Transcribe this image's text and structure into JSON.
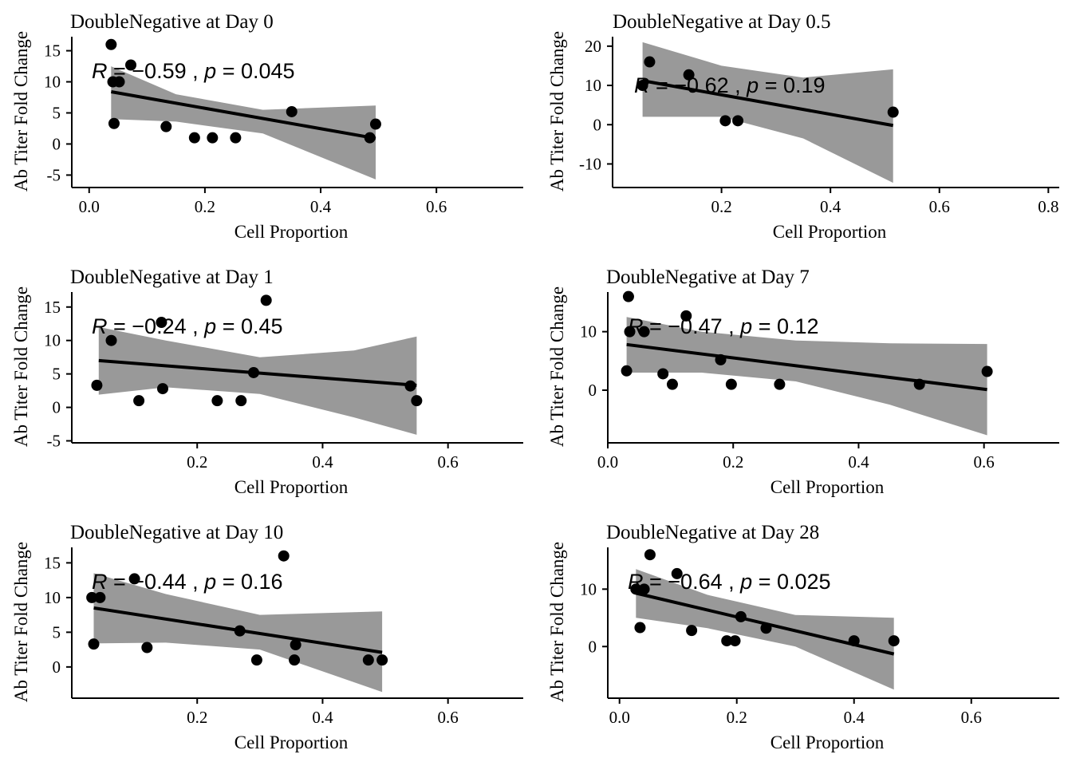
{
  "chart_data": [
    {
      "type": "scatter",
      "title": "DoubleNegative at Day 0",
      "xlabel": "Cell Proportion",
      "ylabel": "Ab Titer Fold Change",
      "xlim": [
        -0.03,
        0.75
      ],
      "ylim": [
        -7,
        17
      ],
      "xticks": [
        0.0,
        0.2,
        0.4,
        0.6
      ],
      "xtick_labels": [
        "0.0",
        "0.2",
        "0.4",
        "0.6"
      ],
      "yticks": [
        -5,
        0,
        5,
        10,
        15
      ],
      "ytick_labels": [
        "-5",
        "0",
        "5",
        "10",
        "15"
      ],
      "annotation": {
        "r_symbol": "R",
        "r_value": "= −0.59",
        "sep": ",",
        "p_symbol": "p",
        "p_value": "= 0.045"
      },
      "points": [
        [
          0.038,
          16
        ],
        [
          0.041,
          10
        ],
        [
          0.052,
          10
        ],
        [
          0.072,
          12.7
        ],
        [
          0.043,
          3.3
        ],
        [
          0.133,
          2.8
        ],
        [
          0.182,
          1.0
        ],
        [
          0.213,
          1.0
        ],
        [
          0.253,
          1.0
        ],
        [
          0.35,
          5.2
        ],
        [
          0.485,
          1.0
        ],
        [
          0.495,
          3.2
        ]
      ],
      "fit_line": {
        "x": [
          0.038,
          0.495
        ],
        "y": [
          8.4,
          0.9
        ]
      },
      "confidence_band": {
        "x": [
          0.038,
          0.15,
          0.3,
          0.495
        ],
        "lower": [
          4.0,
          3.6,
          1.7,
          -5.7
        ],
        "upper": [
          12.5,
          8.0,
          5.5,
          6.2
        ]
      }
    },
    {
      "type": "scatter",
      "title": "DoubleNegative at Day 0.5",
      "xlabel": "Cell Proportion",
      "ylabel": "Ab Titer Fold Change",
      "xlim": [
        0.0,
        0.82
      ],
      "ylim": [
        -16,
        22
      ],
      "xticks": [
        0.2,
        0.4,
        0.6,
        0.8
      ],
      "xtick_labels": [
        "0.2",
        "0.4",
        "0.6",
        "0.8"
      ],
      "yticks": [
        -10,
        0,
        10,
        20
      ],
      "ytick_labels": [
        "-10",
        "0",
        "10",
        "20"
      ],
      "annotation": {
        "r_symbol": "R",
        "r_value": "= −0.62",
        "sep": ",",
        "p_symbol": "p",
        "p_value": "= 0.19"
      },
      "points": [
        [
          0.055,
          10
        ],
        [
          0.068,
          16
        ],
        [
          0.14,
          12.7
        ],
        [
          0.207,
          1.0
        ],
        [
          0.23,
          1.0
        ],
        [
          0.515,
          3.2
        ]
      ],
      "fit_line": {
        "x": [
          0.055,
          0.515
        ],
        "y": [
          11.2,
          -0.2
        ]
      },
      "confidence_band": {
        "x": [
          0.055,
          0.2,
          0.35,
          0.515
        ],
        "lower": [
          2.0,
          2.0,
          -3.5,
          -14.8
        ],
        "upper": [
          21.0,
          15.0,
          12.0,
          14.1
        ]
      }
    },
    {
      "type": "scatter",
      "title": "DoubleNegative at Day 1",
      "xlabel": "Cell Proportion",
      "ylabel": "Ab Titer Fold Change",
      "xlim": [
        0.0,
        0.72
      ],
      "ylim": [
        -5.3,
        17
      ],
      "xticks": [
        0.2,
        0.4,
        0.6
      ],
      "xtick_labels": [
        "0.2",
        "0.4",
        "0.6"
      ],
      "yticks": [
        -5,
        0,
        5,
        10,
        15
      ],
      "ytick_labels": [
        "-5",
        "0",
        "5",
        "10",
        "15"
      ],
      "annotation": {
        "r_symbol": "R",
        "r_value": "= −0.24",
        "sep": ",",
        "p_symbol": "p",
        "p_value": "= 0.45"
      },
      "points": [
        [
          0.04,
          3.3
        ],
        [
          0.063,
          10
        ],
        [
          0.107,
          1.0
        ],
        [
          0.143,
          12.7
        ],
        [
          0.145,
          2.8
        ],
        [
          0.232,
          1.0
        ],
        [
          0.27,
          1.0
        ],
        [
          0.29,
          5.2
        ],
        [
          0.31,
          16
        ],
        [
          0.54,
          3.2
        ],
        [
          0.55,
          1.0
        ]
      ],
      "fit_line": {
        "x": [
          0.043,
          0.55
        ],
        "y": [
          7.0,
          3.3
        ]
      },
      "confidence_band": {
        "x": [
          0.043,
          0.15,
          0.3,
          0.45,
          0.55
        ],
        "lower": [
          1.9,
          3.0,
          2.0,
          -1.5,
          -4.1
        ],
        "upper": [
          12.0,
          10.0,
          7.5,
          8.5,
          10.6
        ]
      }
    },
    {
      "type": "scatter",
      "title": "DoubleNegative at Day 7",
      "xlabel": "Cell Proportion",
      "ylabel": "Ab Titer Fold Change",
      "xlim": [
        0.0,
        0.72
      ],
      "ylim": [
        -9,
        16.5
      ],
      "xticks": [
        0.0,
        0.2,
        0.4,
        0.6
      ],
      "xtick_labels": [
        "0.0",
        "0.2",
        "0.4",
        "0.6"
      ],
      "yticks": [
        0,
        10
      ],
      "ytick_labels": [
        "0",
        "10"
      ],
      "annotation": {
        "r_symbol": "R",
        "r_value": "= −0.47",
        "sep": ",",
        "p_symbol": "p",
        "p_value": "= 0.12"
      },
      "points": [
        [
          0.03,
          3.3
        ],
        [
          0.033,
          16
        ],
        [
          0.035,
          10
        ],
        [
          0.058,
          10
        ],
        [
          0.088,
          2.8
        ],
        [
          0.103,
          1.0
        ],
        [
          0.125,
          12.7
        ],
        [
          0.18,
          5.2
        ],
        [
          0.197,
          1.0
        ],
        [
          0.274,
          1.0
        ],
        [
          0.497,
          1.0
        ],
        [
          0.605,
          3.2
        ]
      ],
      "fit_line": {
        "x": [
          0.03,
          0.605
        ],
        "y": [
          7.8,
          0.1
        ]
      },
      "confidence_band": {
        "x": [
          0.03,
          0.15,
          0.3,
          0.45,
          0.605
        ],
        "lower": [
          3.0,
          3.0,
          1.5,
          -2.5,
          -7.7
        ],
        "upper": [
          12.5,
          10.0,
          8.5,
          8.0,
          7.9
        ]
      }
    },
    {
      "type": "scatter",
      "title": "DoubleNegative at Day 10",
      "xlabel": "Cell Proportion",
      "ylabel": "Ab Titer Fold Change",
      "xlim": [
        0.0,
        0.72
      ],
      "ylim": [
        -4.5,
        17
      ],
      "xticks": [
        0.2,
        0.4,
        0.6
      ],
      "xtick_labels": [
        "0.2",
        "0.4",
        "0.6"
      ],
      "yticks": [
        0,
        5,
        10,
        15
      ],
      "ytick_labels": [
        "0",
        "5",
        "10",
        "15"
      ],
      "annotation": {
        "r_symbol": "R",
        "r_value": "= −0.44",
        "sep": ",",
        "p_symbol": "p",
        "p_value": "= 0.16"
      },
      "points": [
        [
          0.032,
          10
        ],
        [
          0.045,
          10
        ],
        [
          0.035,
          3.3
        ],
        [
          0.1,
          12.7
        ],
        [
          0.12,
          2.8
        ],
        [
          0.268,
          5.2
        ],
        [
          0.295,
          1.0
        ],
        [
          0.338,
          16
        ],
        [
          0.355,
          1.0
        ],
        [
          0.357,
          3.2
        ],
        [
          0.473,
          1.0
        ],
        [
          0.495,
          1.0
        ]
      ],
      "fit_line": {
        "x": [
          0.035,
          0.495
        ],
        "y": [
          8.5,
          2.1
        ]
      },
      "confidence_band": {
        "x": [
          0.035,
          0.15,
          0.3,
          0.495
        ],
        "lower": [
          3.4,
          3.5,
          2.5,
          -3.6
        ],
        "upper": [
          13.5,
          10.5,
          7.5,
          8.0
        ]
      }
    },
    {
      "type": "scatter",
      "title": "DoubleNegative at Day 28",
      "xlabel": "Cell Proportion",
      "ylabel": "Ab Titer Fold Change",
      "xlim": [
        -0.02,
        0.75
      ],
      "ylim": [
        -9,
        17
      ],
      "xticks": [
        0.0,
        0.2,
        0.4,
        0.6
      ],
      "xtick_labels": [
        "0.0",
        "0.2",
        "0.4",
        "0.6"
      ],
      "yticks": [
        0,
        10
      ],
      "ytick_labels": [
        "0",
        "10"
      ],
      "annotation": {
        "r_symbol": "R",
        "r_value": "= −0.64",
        "sep": ",",
        "p_symbol": "p",
        "p_value": "= 0.025"
      },
      "points": [
        [
          0.028,
          10
        ],
        [
          0.042,
          10
        ],
        [
          0.035,
          3.3
        ],
        [
          0.052,
          16
        ],
        [
          0.098,
          12.7
        ],
        [
          0.123,
          2.8
        ],
        [
          0.183,
          1.0
        ],
        [
          0.197,
          1.0
        ],
        [
          0.207,
          5.2
        ],
        [
          0.25,
          3.2
        ],
        [
          0.4,
          1.0
        ],
        [
          0.468,
          1.0
        ]
      ],
      "fit_line": {
        "x": [
          0.028,
          0.468
        ],
        "y": [
          9.3,
          -1.3
        ]
      },
      "confidence_band": {
        "x": [
          0.028,
          0.15,
          0.3,
          0.468
        ],
        "lower": [
          5.0,
          3.2,
          0.0,
          -7.5
        ],
        "upper": [
          13.5,
          9.0,
          5.5,
          5.0
        ]
      }
    }
  ]
}
